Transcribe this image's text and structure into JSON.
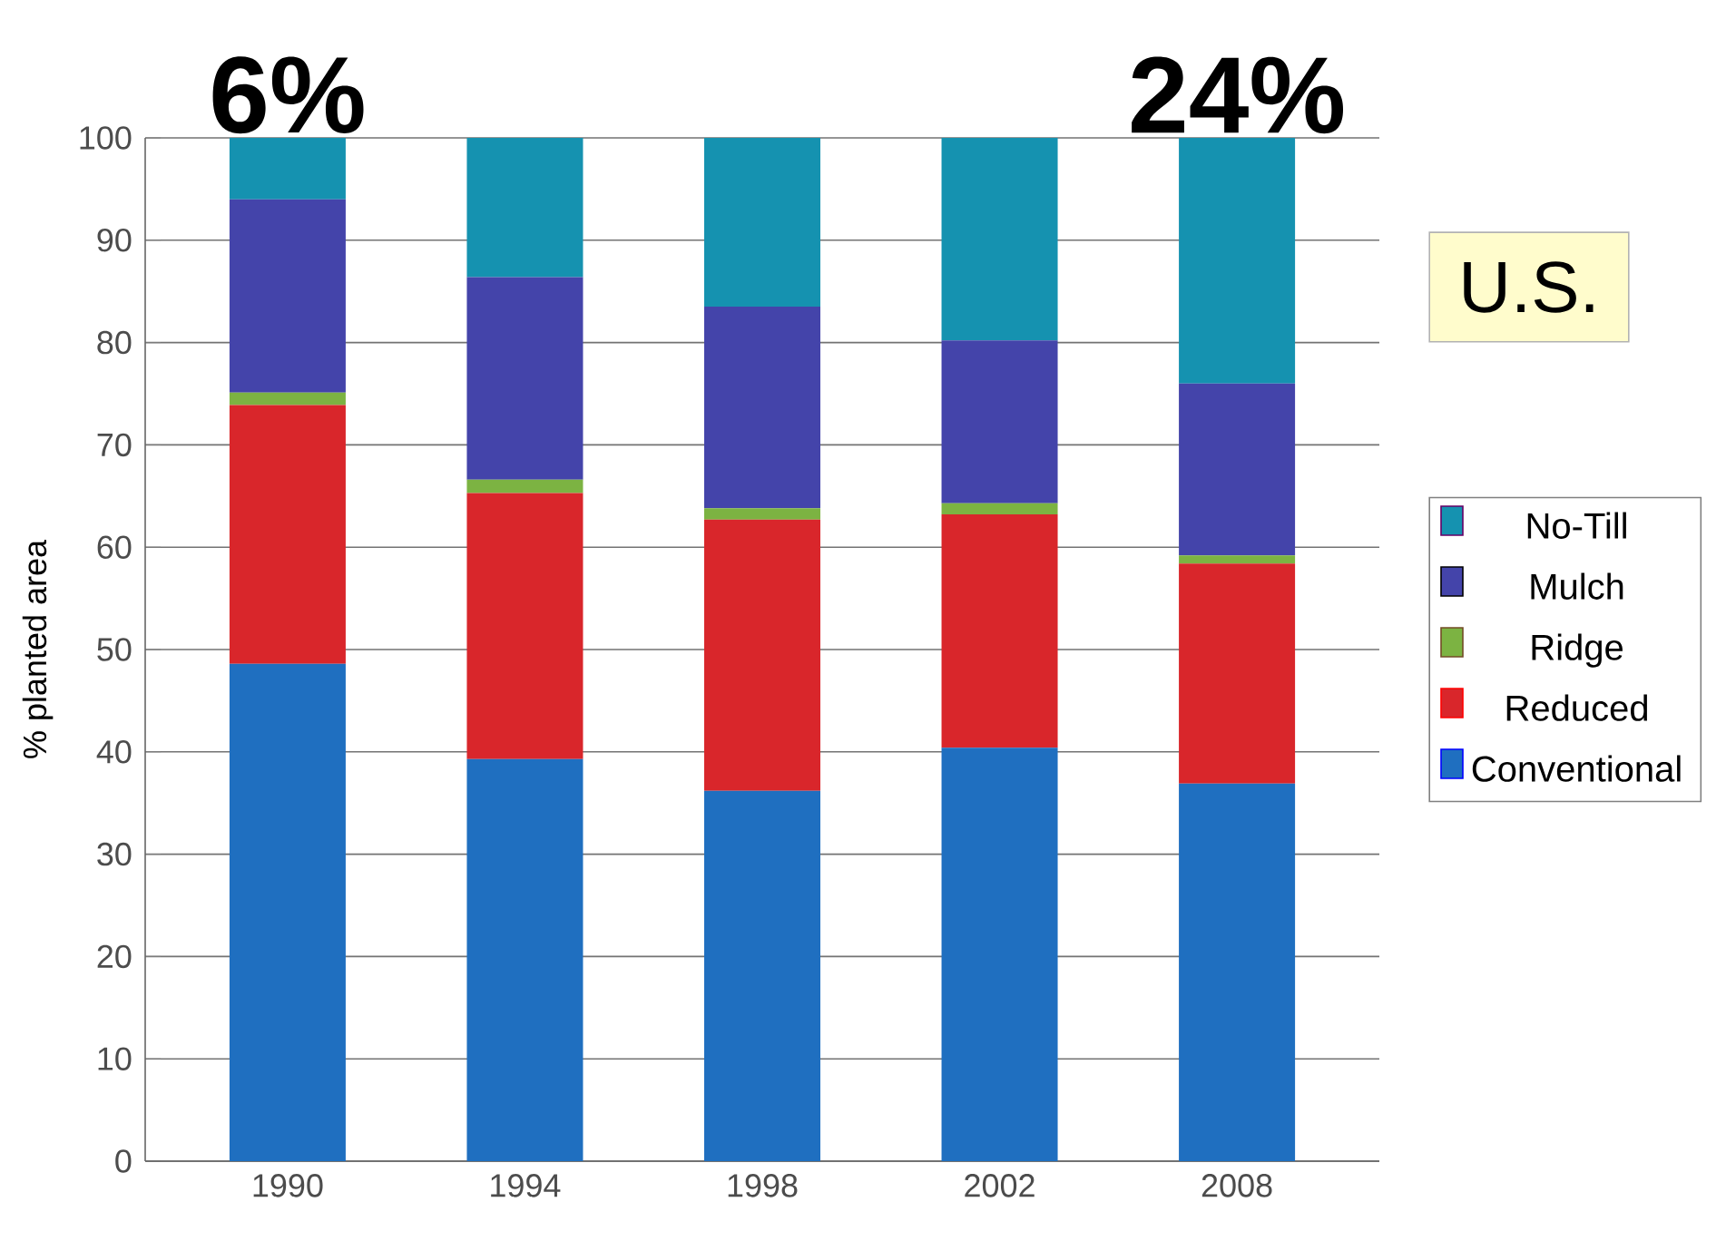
{
  "chart_data": {
    "type": "bar",
    "stacked": true,
    "ylabel": "% planted area",
    "categories": [
      "1990",
      "1994",
      "1998",
      "2002",
      "2008"
    ],
    "series": [
      {
        "name": "Conventional",
        "color": "#1f6fc0",
        "values": [
          48.6,
          39.3,
          36.2,
          40.4,
          36.9
        ]
      },
      {
        "name": "Reduced",
        "color": "#d9262b",
        "values": [
          25.3,
          26.0,
          26.5,
          22.8,
          21.5
        ]
      },
      {
        "name": "Ridge",
        "color": "#7cb342",
        "values": [
          1.2,
          1.3,
          1.1,
          1.1,
          0.8
        ]
      },
      {
        "name": "Mulch",
        "color": "#4444aa",
        "values": [
          18.9,
          19.8,
          19.7,
          15.9,
          16.8
        ]
      },
      {
        "name": "No-Till",
        "color": "#1592b0",
        "values": [
          6.0,
          13.6,
          16.5,
          19.8,
          24.0
        ]
      }
    ],
    "ylim": [
      0,
      100
    ],
    "yticks": [
      0,
      10,
      20,
      30,
      40,
      50,
      60,
      70,
      80,
      90,
      100
    ],
    "grid": "y",
    "legend": "right",
    "annotations": [
      {
        "text": "6%",
        "x": "1990",
        "y": 100
      },
      {
        "text": "24%",
        "x": "2008",
        "y": 100
      },
      "U.S."
    ]
  }
}
